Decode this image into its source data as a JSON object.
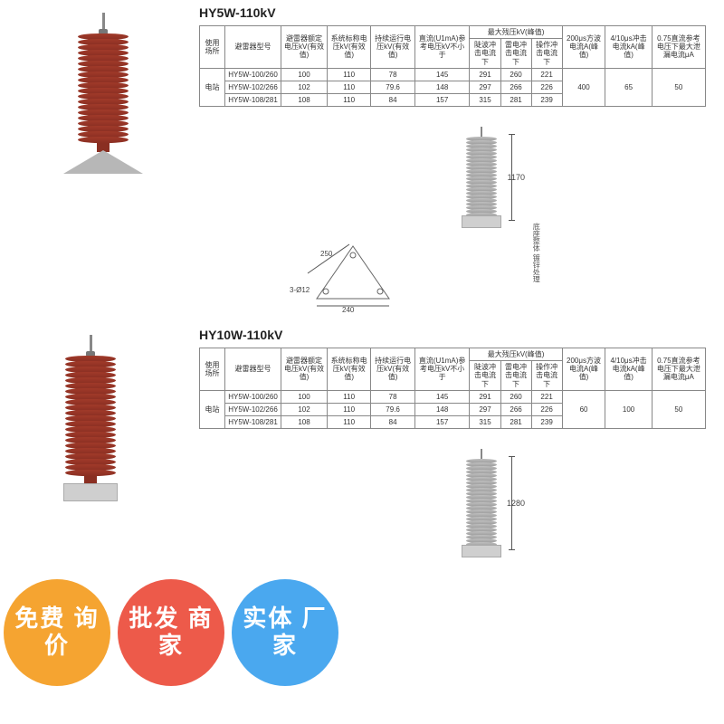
{
  "section1": {
    "title": "HY5W-110kV",
    "arrester": {
      "color": "red",
      "shed_count": 20,
      "base": "triangle"
    },
    "drawing": {
      "color": "gray",
      "shed_count": 22,
      "height_label": "1170",
      "base_w": "240",
      "tri_side": "250",
      "bolt_holes": "3-Ø12"
    },
    "note": "底座整体\n镀锌处理",
    "table": {
      "headers_row1": [
        "使用场所",
        "避雷器型号",
        "避雷器额定电压kV(有效值)",
        "系统标称电压kV(有效值)",
        "持续运行电压kV(有效值)",
        "直流(U1mA)参考电压kV不小于",
        "最大残压kV(峰值)",
        "",
        "",
        "200μs方波电流A(峰值)",
        "4/10μs冲击电流kA(峰值)",
        "0.75直流参考电压下最大泄漏电流μA"
      ],
      "headers_row2": [
        "陡波冲击电流下",
        "雷电冲击电流下",
        "操作冲击电流下"
      ],
      "place": "电站",
      "rows": [
        [
          "HY5W-100/260",
          "100",
          "110",
          "78",
          "145",
          "291",
          "260",
          "221"
        ],
        [
          "HY5W-102/266",
          "102",
          "110",
          "79.6",
          "148",
          "297",
          "266",
          "226"
        ],
        [
          "HY5W-108/281",
          "108",
          "110",
          "84",
          "157",
          "315",
          "281",
          "239"
        ]
      ],
      "tail": [
        "400",
        "65",
        "50"
      ]
    }
  },
  "section2": {
    "title": "HY10W-110kV",
    "arrester": {
      "color": "red",
      "shed_count": 22,
      "base": "rect"
    },
    "drawing": {
      "color": "gray",
      "shed_count": 24,
      "height_label": "1280"
    },
    "table": {
      "headers_row1": [
        "使用场所",
        "避雷器型号",
        "避雷器额定电压kV(有效值)",
        "系统标称电压kV(有效值)",
        "持续运行电压kV(有效值)",
        "直流(U1mA)参考电压kV不小于",
        "最大残压kV(峰值)",
        "",
        "",
        "200μs方波电流A(峰值)",
        "4/10μs冲击电流kA(峰值)",
        "0.75直流参考电压下最大泄漏电流μA"
      ],
      "headers_row2": [
        "陡波冲击电流下",
        "雷电冲击电流下",
        "操作冲击电流下"
      ],
      "place": "电站",
      "rows": [
        [
          "HY5W-100/260",
          "100",
          "110",
          "78",
          "145",
          "291",
          "260",
          "221"
        ],
        [
          "HY5W-102/266",
          "102",
          "110",
          "79.6",
          "148",
          "297",
          "266",
          "226"
        ],
        [
          "HY5W-108/281",
          "108",
          "110",
          "84",
          "157",
          "315",
          "281",
          "239"
        ]
      ],
      "tail": [
        "60",
        "100",
        "50"
      ]
    }
  },
  "bubbles": {
    "orange": "免费\n询价",
    "red": "批发\n商家",
    "blue": "实体\n厂家"
  },
  "style": {
    "shed_red": "#8a2f22",
    "shed_gray": "#9a9a9a",
    "table_border": "#888888",
    "text": "#333333",
    "bubble_orange": "#f5a431",
    "bubble_red": "#ed5a4a",
    "bubble_blue": "#4aa8ef",
    "title_fontsize": 14,
    "table_fontsize": 8,
    "bubble_fontsize": 26
  }
}
